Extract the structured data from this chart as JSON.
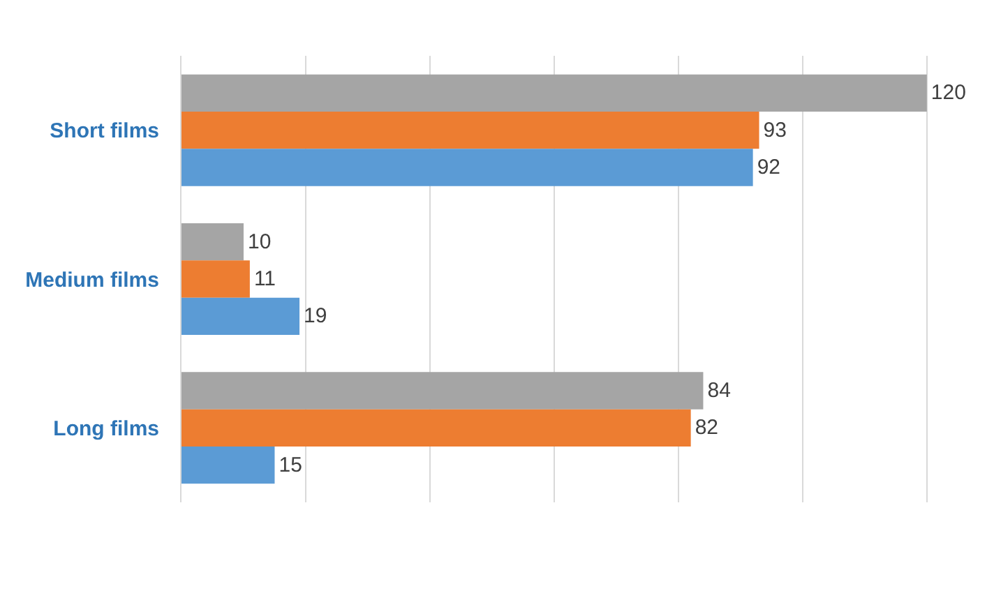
{
  "chart_data": {
    "type": "bar",
    "orientation": "horizontal",
    "categories": [
      "Short films",
      "Medium films",
      "Long films"
    ],
    "series": [
      {
        "color": "#a5a5a5",
        "values": [
          120,
          10,
          84
        ]
      },
      {
        "color": "#ed7d31",
        "values": [
          93,
          11,
          82
        ]
      },
      {
        "color": "#5b9bd5",
        "values": [
          92,
          19,
          15
        ]
      }
    ],
    "grid": "x",
    "tick_labels": "y",
    "data_labels": true
  }
}
